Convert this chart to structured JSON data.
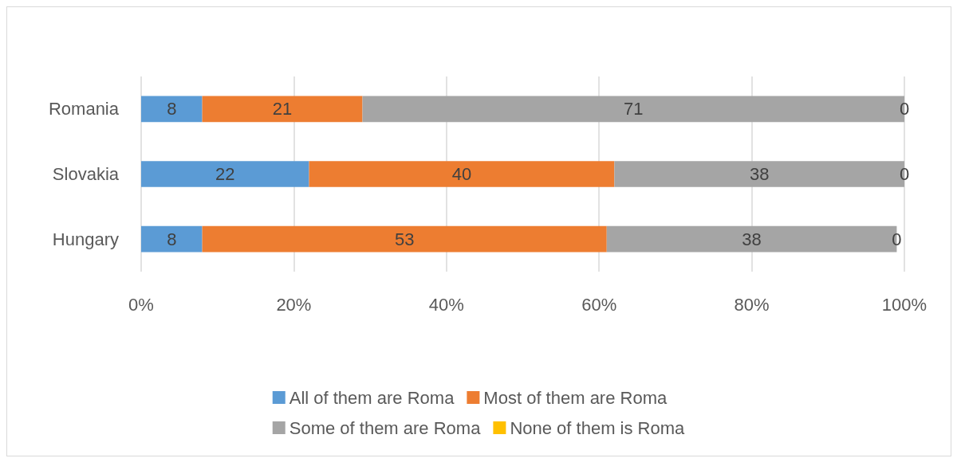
{
  "chart_data": {
    "type": "bar",
    "orientation": "horizontal",
    "stacked": true,
    "categories": [
      "Romania",
      "Slovakia",
      "Hungary"
    ],
    "series": [
      {
        "name": "All of them are Roma",
        "color": "#5b9bd5",
        "values": [
          8,
          22,
          8
        ]
      },
      {
        "name": "Most of them are Roma",
        "color": "#ed7d31",
        "values": [
          21,
          40,
          53
        ]
      },
      {
        "name": "Some of them are Roma",
        "color": "#a5a5a5",
        "values": [
          71,
          38,
          38
        ]
      },
      {
        "name": "None of them is Roma",
        "color": "#ffc000",
        "values": [
          0,
          0,
          0
        ]
      }
    ],
    "xlim": [
      0,
      100
    ],
    "xticks": [
      {
        "value": 0,
        "label": "0%"
      },
      {
        "value": 20,
        "label": "20%"
      },
      {
        "value": 40,
        "label": "40%"
      },
      {
        "value": 60,
        "label": "60%"
      },
      {
        "value": 80,
        "label": "80%"
      },
      {
        "value": 100,
        "label": "100%"
      }
    ],
    "grid": "x",
    "legend": "bottom",
    "data_labels": true
  }
}
